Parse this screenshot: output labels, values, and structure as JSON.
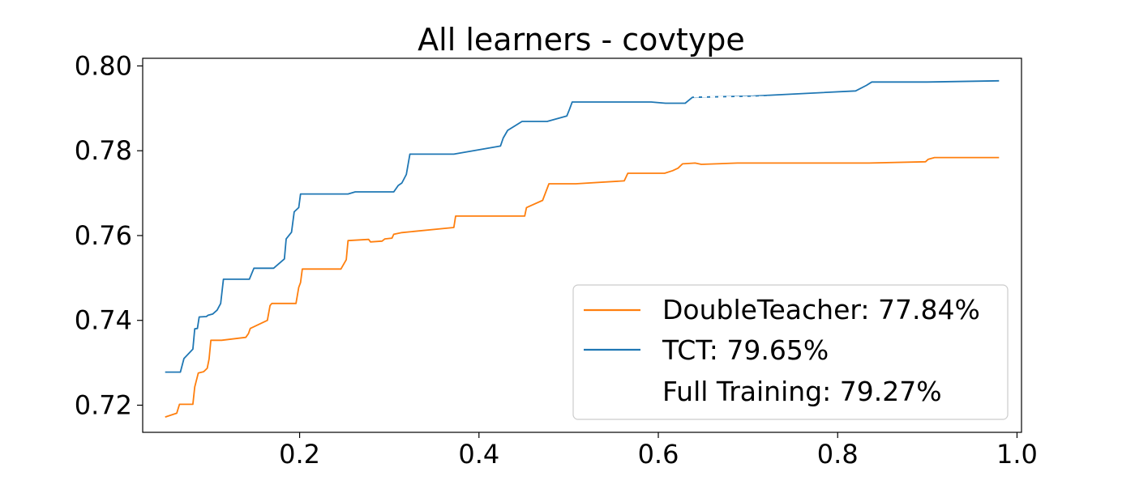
{
  "chart_data": {
    "type": "line",
    "title": "All learners - covtype",
    "xlabel": "",
    "ylabel": "",
    "xlim": [
      0.025,
      1.005
    ],
    "ylim": [
      0.7136,
      0.8018
    ],
    "x_ticks": [
      0.2,
      0.4,
      0.6,
      0.8,
      1.0
    ],
    "x_tick_labels": [
      "0.2",
      "0.4",
      "0.6",
      "0.8",
      "1.0"
    ],
    "y_ticks": [
      0.72,
      0.74,
      0.76,
      0.78,
      0.8
    ],
    "y_tick_labels": [
      "0.72",
      "0.74",
      "0.76",
      "0.78",
      "0.80"
    ],
    "grid": false,
    "legend_position": "lower-right",
    "series": [
      {
        "name": "DoubleTeacher: 77.84%",
        "color": "#ff7f0e",
        "points": [
          [
            0.05,
            0.7172
          ],
          [
            0.063,
            0.7181
          ],
          [
            0.066,
            0.7202
          ],
          [
            0.081,
            0.7202
          ],
          [
            0.083,
            0.7243
          ],
          [
            0.087,
            0.7276
          ],
          [
            0.093,
            0.7279
          ],
          [
            0.097,
            0.7287
          ],
          [
            0.099,
            0.7309
          ],
          [
            0.101,
            0.7353
          ],
          [
            0.113,
            0.7353
          ],
          [
            0.14,
            0.736
          ],
          [
            0.143,
            0.7369
          ],
          [
            0.145,
            0.7381
          ],
          [
            0.164,
            0.74
          ],
          [
            0.167,
            0.7435
          ],
          [
            0.169,
            0.744
          ],
          [
            0.196,
            0.744
          ],
          [
            0.199,
            0.7478
          ],
          [
            0.201,
            0.7489
          ],
          [
            0.203,
            0.7521
          ],
          [
            0.246,
            0.7521
          ],
          [
            0.249,
            0.7532
          ],
          [
            0.252,
            0.7543
          ],
          [
            0.254,
            0.7588
          ],
          [
            0.277,
            0.7591
          ],
          [
            0.279,
            0.7585
          ],
          [
            0.292,
            0.7587
          ],
          [
            0.295,
            0.7592
          ],
          [
            0.303,
            0.7594
          ],
          [
            0.305,
            0.7603
          ],
          [
            0.314,
            0.7607
          ],
          [
            0.372,
            0.7619
          ],
          [
            0.374,
            0.7646
          ],
          [
            0.451,
            0.7646
          ],
          [
            0.453,
            0.7666
          ],
          [
            0.471,
            0.7683
          ],
          [
            0.478,
            0.7722
          ],
          [
            0.508,
            0.7722
          ],
          [
            0.562,
            0.7729
          ],
          [
            0.566,
            0.7747
          ],
          [
            0.607,
            0.7747
          ],
          [
            0.616,
            0.7753
          ],
          [
            0.622,
            0.7759
          ],
          [
            0.627,
            0.7769
          ],
          [
            0.641,
            0.7771
          ],
          [
            0.648,
            0.7768
          ],
          [
            0.688,
            0.7771
          ],
          [
            0.835,
            0.7771
          ],
          [
            0.898,
            0.7774
          ],
          [
            0.901,
            0.778
          ],
          [
            0.908,
            0.7784
          ],
          [
            0.98,
            0.7784
          ]
        ]
      },
      {
        "name": "TCT: 79.65%",
        "color": "#1f77b4",
        "points": [
          [
            0.05,
            0.7278
          ],
          [
            0.067,
            0.7278
          ],
          [
            0.071,
            0.731
          ],
          [
            0.081,
            0.7332
          ],
          [
            0.083,
            0.738
          ],
          [
            0.086,
            0.7381
          ],
          [
            0.088,
            0.7408
          ],
          [
            0.096,
            0.7409
          ],
          [
            0.098,
            0.7412
          ],
          [
            0.103,
            0.7415
          ],
          [
            0.108,
            0.7424
          ],
          [
            0.112,
            0.744
          ],
          [
            0.115,
            0.7497
          ],
          [
            0.144,
            0.7497
          ],
          [
            0.149,
            0.7523
          ],
          [
            0.171,
            0.7523
          ],
          [
            0.183,
            0.7545
          ],
          [
            0.185,
            0.7592
          ],
          [
            0.191,
            0.7608
          ],
          [
            0.194,
            0.7656
          ],
          [
            0.199,
            0.7666
          ],
          [
            0.201,
            0.7698
          ],
          [
            0.254,
            0.7698
          ],
          [
            0.262,
            0.7703
          ],
          [
            0.305,
            0.7703
          ],
          [
            0.31,
            0.7718
          ],
          [
            0.314,
            0.7724
          ],
          [
            0.319,
            0.7744
          ],
          [
            0.323,
            0.7792
          ],
          [
            0.372,
            0.7792
          ],
          [
            0.424,
            0.7811
          ],
          [
            0.427,
            0.783
          ],
          [
            0.432,
            0.7848
          ],
          [
            0.448,
            0.7869
          ],
          [
            0.476,
            0.7869
          ],
          [
            0.498,
            0.7882
          ],
          [
            0.501,
            0.7898
          ],
          [
            0.504,
            0.7915
          ],
          [
            0.592,
            0.7915
          ],
          [
            0.608,
            0.7912
          ],
          [
            0.63,
            0.7912
          ],
          [
            0.638,
            0.7926
          ],
          [
            0.706,
            0.7929
          ],
          [
            0.82,
            0.7941
          ],
          [
            0.832,
            0.7954
          ],
          [
            0.838,
            0.7962
          ],
          [
            0.9,
            0.7962
          ],
          [
            0.98,
            0.7965
          ]
        ]
      },
      {
        "name": "Full Training: 79.27%",
        "color": "#ffffff",
        "value": 0.7927
      }
    ]
  }
}
